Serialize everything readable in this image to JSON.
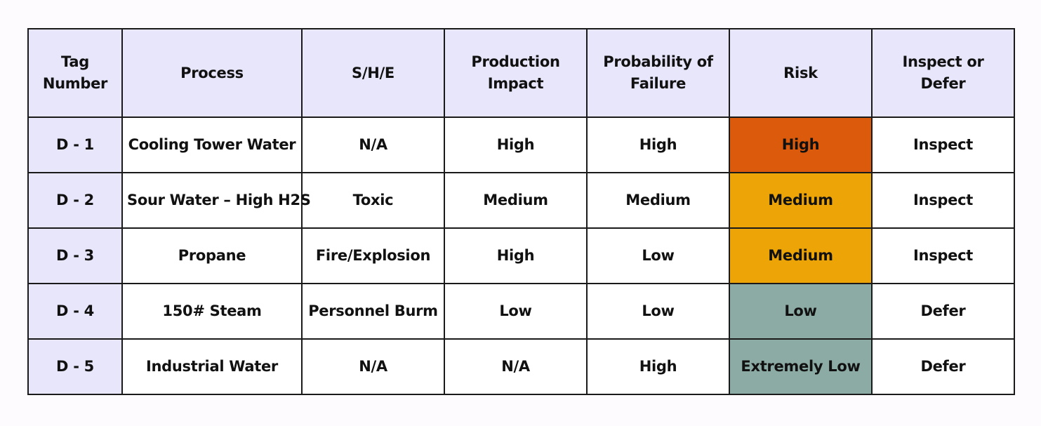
{
  "table": {
    "headers": [
      {
        "line1": "Tag",
        "line2": "Number"
      },
      {
        "line1": "Process",
        "line2": ""
      },
      {
        "line1": "S/H/E",
        "line2": ""
      },
      {
        "line1": "Production",
        "line2": "Impact"
      },
      {
        "line1": "Probability of",
        "line2": "Failure"
      },
      {
        "line1": "Risk",
        "line2": ""
      },
      {
        "line1": "Inspect or",
        "line2": "Defer"
      }
    ],
    "rows": [
      {
        "tag": "D - 1",
        "process": "Cooling Tower Water",
        "she": "N/A",
        "production_impact": "High",
        "probability_of_failure": "High",
        "risk": "High",
        "inspect_or_defer": "Inspect"
      },
      {
        "tag": "D - 2",
        "process": "Sour Water – High H2S",
        "she": "Toxic",
        "production_impact": "Medium",
        "probability_of_failure": "Medium",
        "risk": "Medium",
        "inspect_or_defer": "Inspect"
      },
      {
        "tag": "D - 3",
        "process": "Propane",
        "she": "Fire/Explosion",
        "production_impact": "High",
        "probability_of_failure": "Low",
        "risk": "Medium",
        "inspect_or_defer": "Inspect"
      },
      {
        "tag": "D - 4",
        "process": "150# Steam",
        "she": "Personnel Burm",
        "production_impact": "Low",
        "probability_of_failure": "Low",
        "risk": "Low",
        "inspect_or_defer": "Defer"
      },
      {
        "tag": "D - 5",
        "process": "Industrial Water",
        "she": "N/A",
        "production_impact": "N/A",
        "probability_of_failure": "High",
        "risk": "Extremely Low",
        "inspect_or_defer": "Defer"
      }
    ]
  },
  "colors": {
    "header_bg": "#e8e6fb",
    "tag_cell_bg": "#e8e6fb",
    "risk_high": "#db5a0b",
    "risk_medium": "#eca406",
    "risk_low": "#8caba4",
    "risk_extremely_low": "#8caba4"
  }
}
